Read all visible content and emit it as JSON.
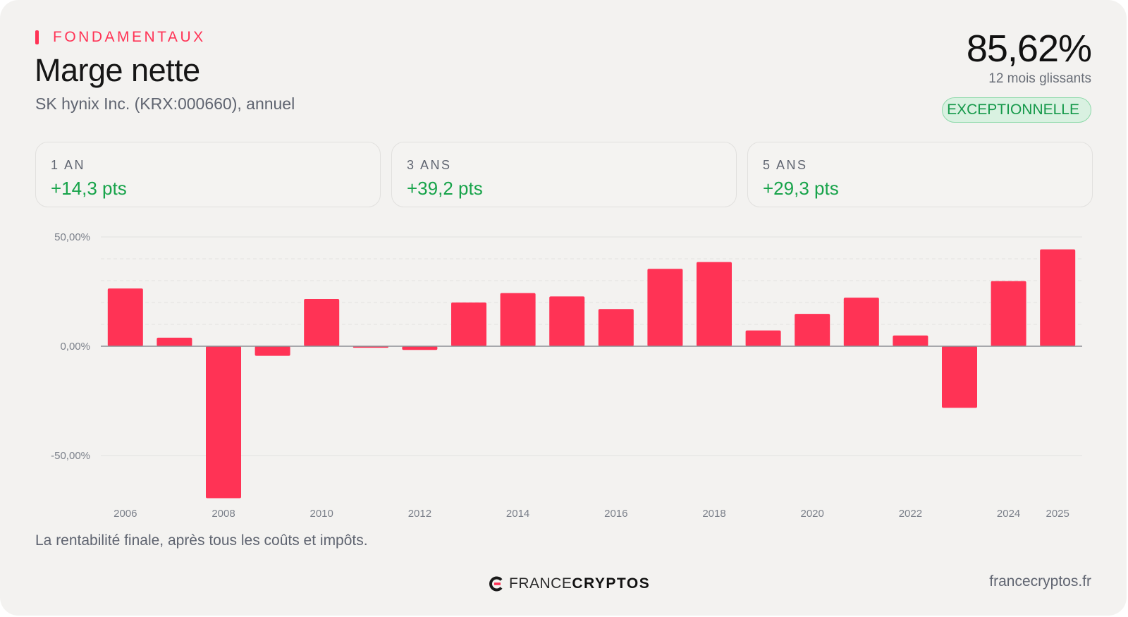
{
  "header": {
    "eyebrow": "FONDAMENTAUX",
    "title": "Marge nette",
    "subtitle": "SK hynix Inc. (KRX:000660), annuel"
  },
  "kpi": {
    "value": "85,62%",
    "period": "12 mois glissants",
    "rating": "EXCEPTIONNELLE"
  },
  "stats": [
    {
      "label": "1 AN",
      "value": "+14,3 pts"
    },
    {
      "label": "3 ANS",
      "value": "+39,2 pts"
    },
    {
      "label": "5 ANS",
      "value": "+29,3 pts"
    }
  ],
  "chart_data": {
    "type": "bar",
    "categories": [
      "2006",
      "2007",
      "2008",
      "2009",
      "2010",
      "2011",
      "2012",
      "2013",
      "2014",
      "2015",
      "2016",
      "2017",
      "2018",
      "2019",
      "2020",
      "2021",
      "2022",
      "2023",
      "2024",
      "2025"
    ],
    "x_tick_labels": [
      "2006",
      "2008",
      "2010",
      "2012",
      "2014",
      "2016",
      "2018",
      "2020",
      "2022",
      "2024",
      "2025"
    ],
    "values": [
      26.4,
      3.9,
      -69.5,
      -4.4,
      21.6,
      -0.7,
      -1.7,
      20.0,
      24.3,
      22.8,
      17.0,
      35.4,
      38.5,
      7.2,
      14.8,
      22.2,
      4.9,
      -28.2,
      29.8,
      44.3
    ],
    "y_tick_labels": [
      "50,00%",
      "0,00%",
      "-50,00%"
    ],
    "y_ticks": [
      50,
      0,
      -50
    ],
    "ylim": [
      -70,
      50
    ],
    "grid": true,
    "bar_color": "#ff3355"
  },
  "caption": "La rentabilité finale, après tous les coûts et impôts.",
  "footer": {
    "logo_light": "FRANCE",
    "logo_bold": "CRYPTOS",
    "url": "francecryptos.fr"
  }
}
